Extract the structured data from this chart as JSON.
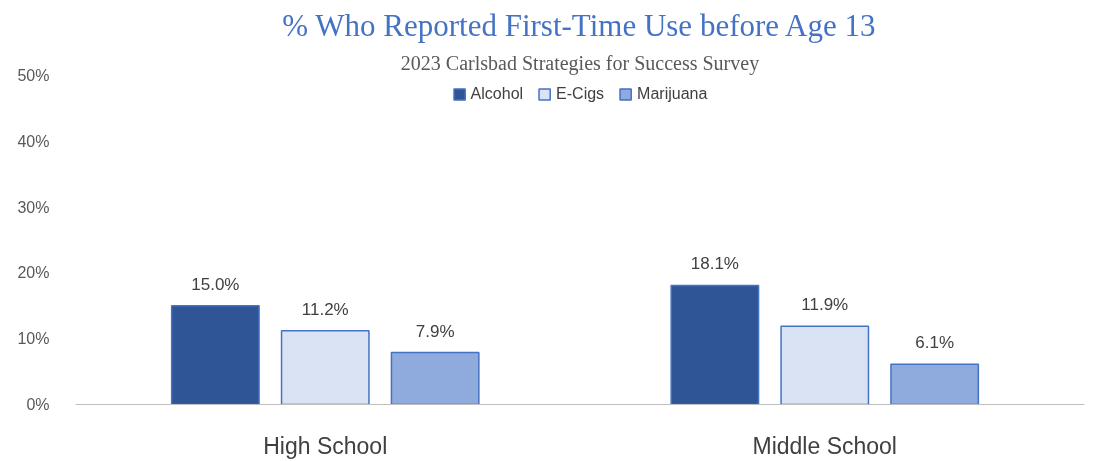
{
  "chart_data": {
    "type": "bar",
    "title": "% Who Reported First-Time Use before Age 13",
    "subtitle": "2023 Carlsbad Strategies for Success Survey",
    "categories": [
      "High School",
      "Middle School"
    ],
    "series": [
      {
        "name": "Alcohol",
        "color": "#2f5597",
        "values": [
          15.0,
          18.1
        ],
        "value_labels": [
          "15.0%",
          "18.1%"
        ]
      },
      {
        "name": "E-Cigs",
        "color": "#dae3f3",
        "values": [
          11.2,
          11.9
        ],
        "value_labels": [
          "11.2%",
          "11.9%"
        ]
      },
      {
        "name": "Marijuana",
        "color": "#8faadc",
        "values": [
          7.9,
          6.1
        ],
        "value_labels": [
          "7.9%",
          "6.1%"
        ]
      }
    ],
    "ylim": [
      0,
      50
    ],
    "yticks": [
      {
        "value": 0,
        "label": "0%"
      },
      {
        "value": 10,
        "label": "10%"
      },
      {
        "value": 20,
        "label": "20%"
      },
      {
        "value": 30,
        "label": "30%"
      },
      {
        "value": 40,
        "label": "40%"
      },
      {
        "value": 50,
        "label": "50%"
      }
    ],
    "legend": "top"
  }
}
